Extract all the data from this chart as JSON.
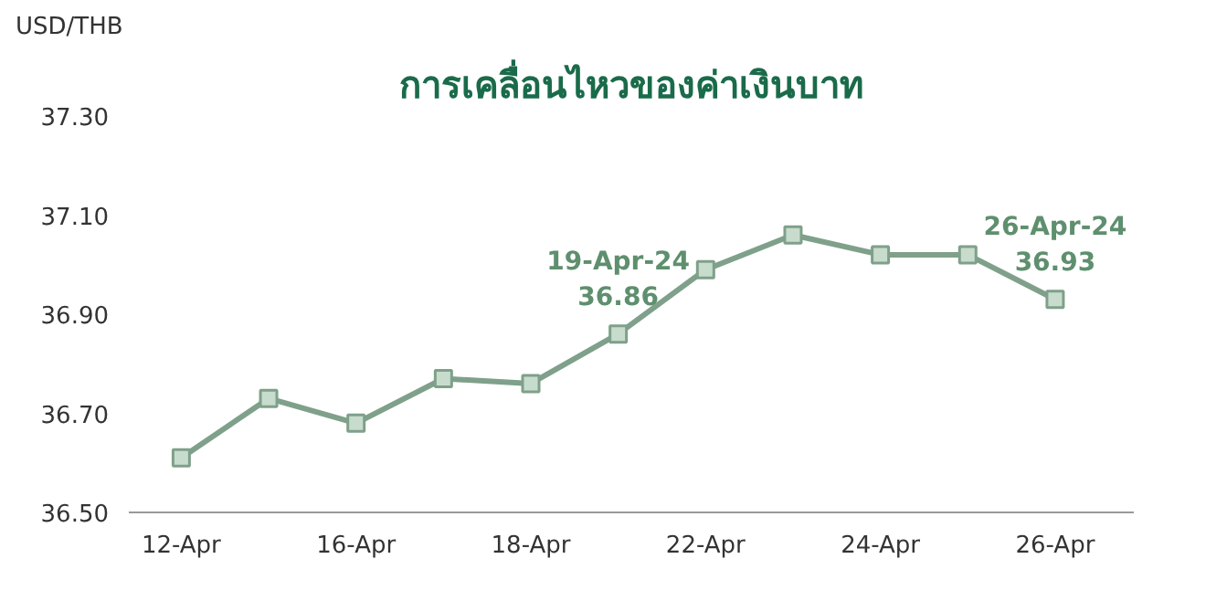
{
  "chart_data": {
    "type": "line",
    "title": "การเคลื่อนไหวของค่าเงินบาท",
    "ylabel": "USD/THB",
    "categories": [
      "12-Apr",
      null,
      "16-Apr",
      null,
      "18-Apr",
      null,
      "22-Apr",
      null,
      "24-Apr",
      null,
      "26-Apr"
    ],
    "series": [
      {
        "color": "#7fa08a",
        "values": [
          36.61,
          36.73,
          36.68,
          36.77,
          36.76,
          36.86,
          36.99,
          37.06,
          37.02,
          37.02,
          36.93
        ]
      }
    ],
    "value_labels": [
      null,
      null,
      null,
      null,
      null,
      "19-Apr-24\n36.86",
      null,
      null,
      null,
      null,
      "26-Apr-24\n36.93"
    ],
    "ylim": [
      36.5,
      37.3
    ],
    "yticks": [
      {
        "value": 36.5,
        "label": "36.50"
      },
      {
        "value": 36.7,
        "label": "36.70"
      },
      {
        "value": 36.9,
        "label": "36.90"
      },
      {
        "value": 37.1,
        "label": "37.10"
      },
      {
        "value": 37.3,
        "label": "37.30"
      }
    ],
    "marker": "square",
    "grid": false
  }
}
